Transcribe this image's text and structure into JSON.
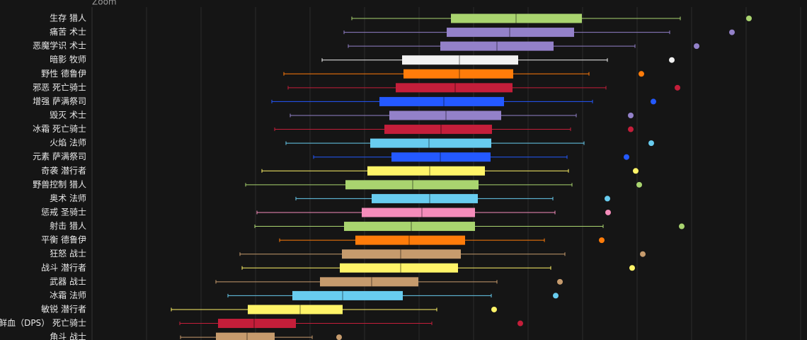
{
  "chart_data": {
    "type": "box",
    "orientation": "horizontal",
    "zoom_label": "Zoom",
    "categories": [
      "生存 猎人",
      "痛苦 术士",
      "恶魔学识 术士",
      "暗影 牧师",
      "野性 德鲁伊",
      "邪恶 死亡骑士",
      "增强 萨满祭司",
      "毁灭 术士",
      "冰霜 死亡骑士",
      "火焰 法师",
      "元素 萨满祭司",
      "奇袭 潜行者",
      "野兽控制 猎人",
      "奥术 法师",
      "惩戒 圣骑士",
      "射击 猎人",
      "平衡 德鲁伊",
      "狂怒 战士",
      "战斗 潜行者",
      "武器 战士",
      "冰霜 法师",
      "敏锐 潜行者",
      "鲜血（DPS） 死亡骑士",
      "角斗 战士"
    ],
    "boxes": [
      {
        "low": 367,
        "q1": 507,
        "median": 599,
        "q3": 692,
        "high": 831,
        "outlier": 928,
        "color": "#a9d46f"
      },
      {
        "low": 356,
        "q1": 501,
        "median": 590,
        "q3": 681,
        "high": 816,
        "outlier": 904,
        "color": "#9381c9"
      },
      {
        "low": 362,
        "q1": 492,
        "median": 572,
        "q3": 652,
        "high": 767,
        "outlier": 854,
        "color": "#9381c9"
      },
      {
        "low": 325,
        "q1": 438,
        "median": 519,
        "q3": 602,
        "high": 728,
        "outlier": 819,
        "color": "#f2f2f2"
      },
      {
        "low": 271,
        "q1": 440,
        "median": 519,
        "q3": 595,
        "high": 702,
        "outlier": 776,
        "color": "#ff7c0a"
      },
      {
        "low": 277,
        "q1": 429,
        "median": 513,
        "q3": 594,
        "high": 726,
        "outlier": 827,
        "color": "#c41e3a"
      },
      {
        "low": 254,
        "q1": 406,
        "median": 497,
        "q3": 582,
        "high": 707,
        "outlier": 793,
        "color": "#2459ff"
      },
      {
        "low": 280,
        "q1": 420,
        "median": 500,
        "q3": 578,
        "high": 684,
        "outlier": 761,
        "color": "#9381c9"
      },
      {
        "low": 258,
        "q1": 413,
        "median": 493,
        "q3": 565,
        "high": 676,
        "outlier": 761,
        "color": "#c41e3a"
      },
      {
        "low": 274,
        "q1": 393,
        "median": 476,
        "q3": 564,
        "high": 695,
        "outlier": 790,
        "color": "#68ccef"
      },
      {
        "low": 313,
        "q1": 423,
        "median": 492,
        "q3": 563,
        "high": 671,
        "outlier": 755,
        "color": "#2459ff"
      },
      {
        "low": 240,
        "q1": 389,
        "median": 477,
        "q3": 555,
        "high": 673,
        "outlier": 768,
        "color": "#fff468"
      },
      {
        "low": 217,
        "q1": 358,
        "median": 453,
        "q3": 546,
        "high": 678,
        "outlier": 773,
        "color": "#a9d46f"
      },
      {
        "low": 288,
        "q1": 395,
        "median": 477,
        "q3": 545,
        "high": 651,
        "outlier": 728,
        "color": "#68ccef"
      },
      {
        "low": 233,
        "q1": 381,
        "median": 466,
        "q3": 541,
        "high": 654,
        "outlier": 729,
        "color": "#f48cba"
      },
      {
        "low": 230,
        "q1": 356,
        "median": 451,
        "q3": 541,
        "high": 722,
        "outlier": 833,
        "color": "#a9d46f"
      },
      {
        "low": 265,
        "q1": 372,
        "median": 448,
        "q3": 527,
        "high": 639,
        "outlier": 720,
        "color": "#ff7c0a"
      },
      {
        "low": 209,
        "q1": 353,
        "median": 436,
        "q3": 521,
        "high": 668,
        "outlier": 778,
        "color": "#c69b6d"
      },
      {
        "low": 212,
        "q1": 350,
        "median": 436,
        "q3": 517,
        "high": 648,
        "outlier": 763,
        "color": "#fff468"
      },
      {
        "low": 175,
        "q1": 322,
        "median": 395,
        "q3": 461,
        "high": 572,
        "outlier": 661,
        "color": "#c69b6d"
      },
      {
        "low": 192,
        "q1": 283,
        "median": 354,
        "q3": 439,
        "high": 564,
        "outlier": 655,
        "color": "#68ccef"
      },
      {
        "low": 112,
        "q1": 220,
        "median": 294,
        "q3": 354,
        "high": 487,
        "outlier": 568,
        "color": "#fff468"
      },
      {
        "low": 124,
        "q1": 178,
        "median": 229,
        "q3": 288,
        "high": 480,
        "outlier": 605,
        "color": "#c41e3a"
      },
      {
        "low": 125,
        "q1": 175,
        "median": 219,
        "q3": 258,
        "high": 311,
        "outlier": 349,
        "color": "#c69b6d"
      }
    ],
    "xlim": [
      0,
      1010
    ],
    "xticks": [
      77,
      154,
      231,
      308,
      385,
      462,
      539,
      616,
      693,
      770,
      847,
      924,
      1001
    ],
    "grid": true
  }
}
